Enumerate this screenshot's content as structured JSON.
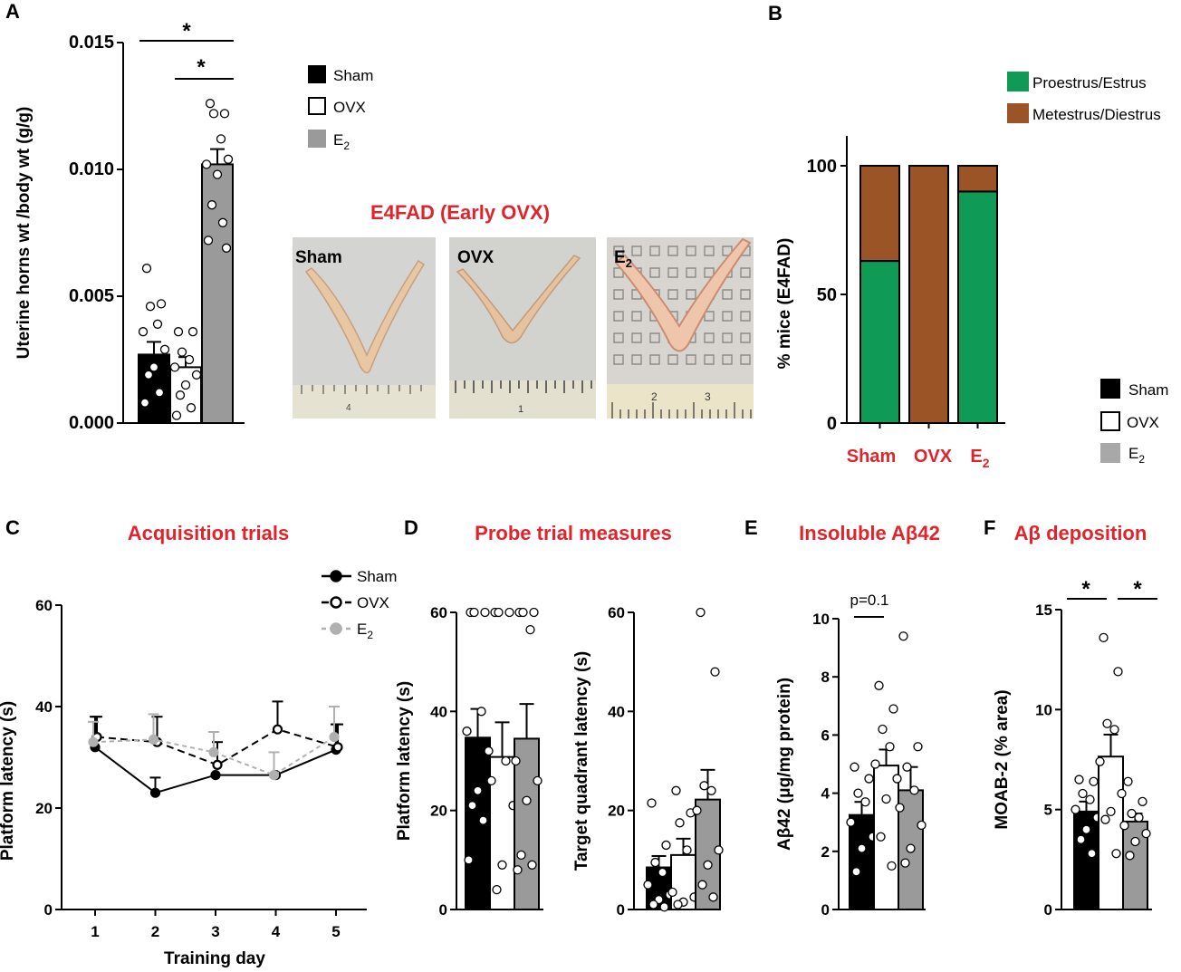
{
  "colors": {
    "sham": "#000000",
    "ovx": "#ffffff",
    "e2": "#9a9a9a",
    "e2_line": "#b0b0b0",
    "title_red": "#e0242b",
    "proestrus": "#0f9a56",
    "metestrus": "#9a5426"
  },
  "panel_labels": {
    "A": "A",
    "B": "B",
    "C": "C",
    "D": "D",
    "E": "E",
    "F": "F"
  },
  "legend_groups": {
    "sham": "Sham",
    "ovx": "OVX",
    "e2_base": "E",
    "e2_sub": "2"
  },
  "titles": {
    "photos": "E4FAD (Early OVX)",
    "C": "Acquisition trials",
    "D": "Probe trial measures",
    "E": "Insoluble Aβ42",
    "F": "Aβ deposition"
  },
  "photos": {
    "sham": "Sham",
    "ovx": "OVX",
    "e2_base": "E",
    "e2_sub": "2",
    "ruler_sham": "4",
    "ruler_ovx": "1",
    "ruler_e2_a": "2",
    "ruler_e2_b": "3"
  },
  "chart_data": [
    {
      "id": "A",
      "type": "bar",
      "ylabel": "Uterine horns wt /body wt (g/g)",
      "ylim": [
        0,
        0.015
      ],
      "yticks": [
        "0.000",
        "0.005",
        "0.010",
        "0.015"
      ],
      "ytick_values": [
        0,
        0.005,
        0.01,
        0.015
      ],
      "categories": [
        "Sham",
        "OVX",
        "E2"
      ],
      "means": [
        0.0027,
        0.0022,
        0.0102
      ],
      "sem": [
        0.0005,
        0.0004,
        0.0006
      ],
      "points": [
        [
          0.0061,
          0.0047,
          0.0046,
          0.0039,
          0.0036,
          0.0029,
          0.0022,
          0.0019,
          0.0012,
          0.0008
        ],
        [
          0.0036,
          0.0036,
          0.0028,
          0.0025,
          0.0022,
          0.0019,
          0.0015,
          0.0011,
          0.0006,
          0.0003
        ],
        [
          0.0126,
          0.0122,
          0.0122,
          0.0112,
          0.0102,
          0.0104,
          0.0098,
          0.0086,
          0.0079,
          0.0072,
          0.0069
        ]
      ],
      "significance": [
        {
          "from": 0,
          "to": 2,
          "label": "*"
        },
        {
          "from": 1,
          "to": 2,
          "label": "*"
        }
      ]
    },
    {
      "id": "B",
      "type": "bar",
      "stacked": true,
      "ylabel": "% mice (E4FAD)",
      "ylim": [
        0,
        100
      ],
      "yticks": [
        "0",
        "50",
        "100"
      ],
      "ytick_values": [
        0,
        50,
        100
      ],
      "categories": [
        "Sham",
        "OVX",
        "E2"
      ],
      "category_labels": {
        "sham": "Sham",
        "ovx": "OVX",
        "e2_base": "E",
        "e2_sub": "2"
      },
      "series": [
        {
          "name": "Proestrus/Estrus",
          "values": [
            63,
            0,
            90
          ]
        },
        {
          "name": "Metestrus/Diestrus",
          "values": [
            37,
            100,
            10
          ]
        }
      ]
    },
    {
      "id": "C",
      "type": "line",
      "title": "Acquisition trials",
      "xlabel": "Training day",
      "ylabel": "Platform latency (s)",
      "x": [
        1,
        2,
        3,
        4,
        5
      ],
      "xticks": [
        "1",
        "2",
        "3",
        "4",
        "5"
      ],
      "ylim": [
        0,
        60
      ],
      "yticks": [
        "0",
        "20",
        "40",
        "60"
      ],
      "ytick_values": [
        0,
        20,
        40,
        60
      ],
      "series": [
        {
          "name": "Sham",
          "values": [
            32,
            23,
            26.5,
            26.5,
            31.5
          ],
          "err": [
            6,
            3,
            0,
            0,
            5
          ]
        },
        {
          "name": "OVX",
          "values": [
            34,
            33,
            28.5,
            35.5,
            32
          ],
          "err": [
            4,
            5,
            4.5,
            5.5,
            4.5
          ]
        },
        {
          "name": "E2",
          "values": [
            33,
            33.5,
            31,
            26.5,
            34
          ],
          "err": [
            4,
            5,
            4,
            4.5,
            6
          ]
        }
      ]
    },
    {
      "id": "D1",
      "type": "bar",
      "ylabel": "Platform latency (s)",
      "ylim": [
        0,
        60
      ],
      "yticks": [
        "0",
        "20",
        "40",
        "60"
      ],
      "ytick_values": [
        0,
        20,
        40,
        60
      ],
      "categories": [
        "Sham",
        "OVX",
        "E2"
      ],
      "means": [
        34.7,
        30.8,
        34.5
      ],
      "sem": [
        5.8,
        7,
        7
      ],
      "points": [
        [
          60,
          60,
          60,
          40,
          36,
          32,
          24,
          21,
          18,
          10
        ],
        [
          60,
          60,
          60,
          30,
          26,
          21,
          9,
          4
        ],
        [
          60,
          60,
          60,
          56.5,
          30,
          26,
          22,
          11,
          9,
          8
        ]
      ]
    },
    {
      "id": "D2",
      "type": "bar",
      "ylabel": "Target quadrant  latency (s)",
      "ylim": [
        0,
        60
      ],
      "yticks": [
        "0",
        "20",
        "40",
        "60"
      ],
      "ytick_values": [
        0,
        20,
        40,
        60
      ],
      "categories": [
        "Sham",
        "OVX",
        "E2"
      ],
      "means": [
        8.5,
        11,
        22.2
      ],
      "sem": [
        2.3,
        3.3,
        6
      ],
      "points": [
        [
          21.5,
          13,
          9.5,
          7.5,
          5,
          3,
          2,
          1,
          0.5
        ],
        [
          24,
          19.5,
          17.5,
          12,
          3.5,
          2.5,
          1.5,
          1
        ],
        [
          60,
          48,
          25,
          24,
          20,
          12,
          9,
          5,
          2.5
        ]
      ]
    },
    {
      "id": "E",
      "type": "bar",
      "title": "Insoluble Aβ42",
      "ylabel": "Aβ42 (μg/mg protein)",
      "ylim": [
        0,
        10
      ],
      "yticks": [
        "0",
        "2",
        "4",
        "6",
        "8",
        "10"
      ],
      "ytick_values": [
        0,
        2,
        4,
        6,
        8,
        10
      ],
      "categories": [
        "Sham",
        "OVX",
        "E2"
      ],
      "means": [
        3.25,
        4.95,
        4.1
      ],
      "sem": [
        0.45,
        0.55,
        0.8
      ],
      "points": [
        [
          4.9,
          4.5,
          4,
          3.7,
          3,
          2.5,
          2.1,
          1.3
        ],
        [
          7.7,
          6.9,
          6.2,
          5.6,
          5,
          4.5,
          3.8,
          2.5,
          1.5
        ],
        [
          9.4,
          5.6,
          4.9,
          4.1,
          3.5,
          2.9,
          2.1,
          1.6
        ]
      ],
      "significance": [
        {
          "from": 0,
          "to": 1,
          "label": "p=0.1"
        }
      ]
    },
    {
      "id": "F",
      "type": "bar",
      "title": "Aβ deposition",
      "ylabel": "MOAB-2 (% area)",
      "ylim": [
        0,
        15
      ],
      "yticks": [
        "0",
        "5",
        "10",
        "15"
      ],
      "ytick_values": [
        0,
        5,
        10,
        15
      ],
      "categories": [
        "Sham",
        "OVX",
        "E2"
      ],
      "means": [
        4.9,
        7.65,
        4.4
      ],
      "sem": [
        0.5,
        1.1,
        0.4
      ],
      "points": [
        [
          6.5,
          6.4,
          5.8,
          5.5,
          5,
          4.6,
          4,
          3.5,
          2.8
        ],
        [
          13.6,
          11.9,
          9.3,
          9,
          7.4,
          5.8,
          4.9,
          4.5,
          2.8
        ],
        [
          6.4,
          5.4,
          4.8,
          4.6,
          4.2,
          3.8,
          3.4,
          2.7
        ]
      ],
      "significance": [
        {
          "from": 0,
          "to": 1,
          "label": "*"
        },
        {
          "from": 1,
          "to": 2,
          "label": "*"
        }
      ]
    }
  ]
}
